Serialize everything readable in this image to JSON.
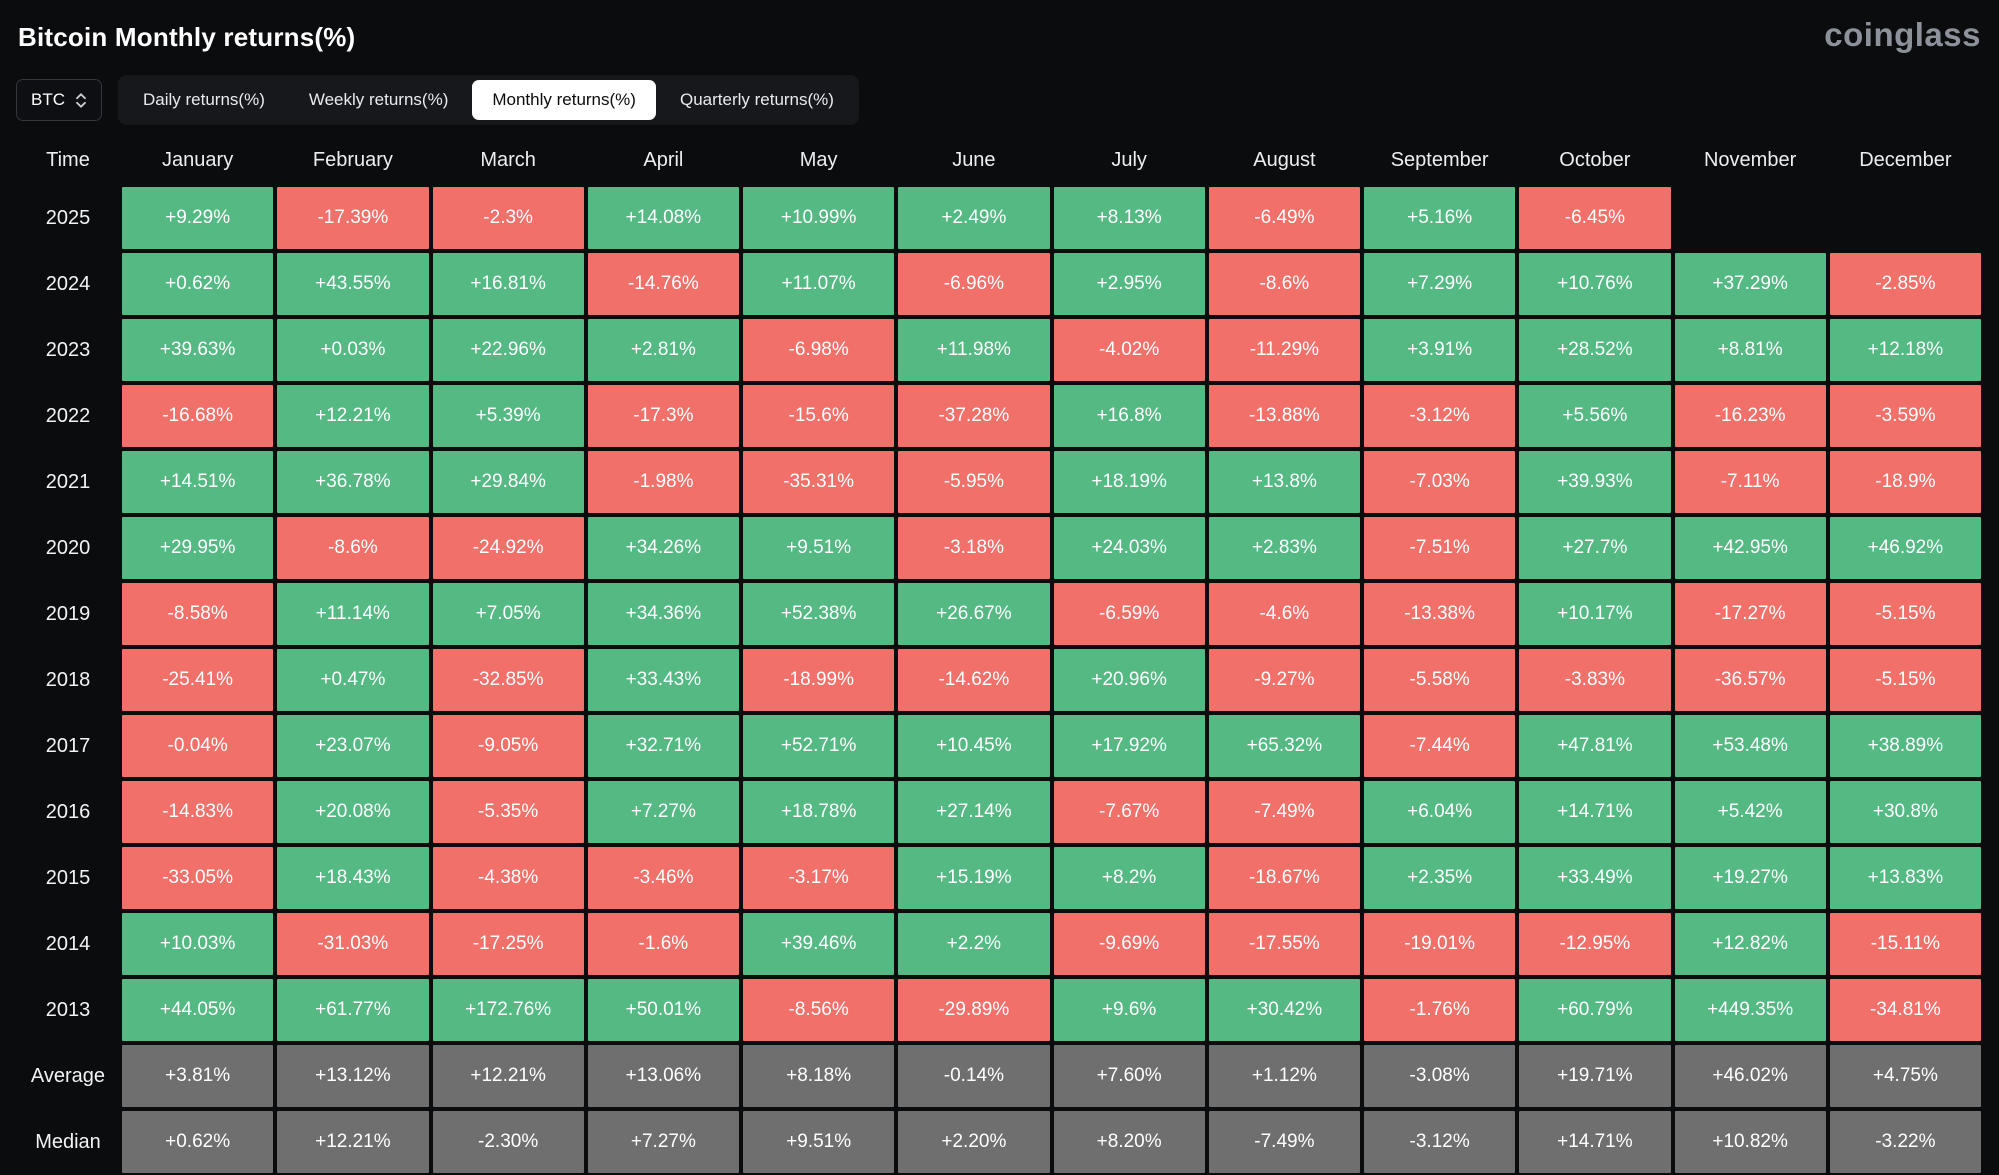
{
  "header": {
    "title": "Bitcoin Monthly returns(%)",
    "brand": "coinglass"
  },
  "controls": {
    "coin_selector": {
      "value": "BTC"
    },
    "tabs": [
      {
        "label": "Daily returns(%)",
        "active": false
      },
      {
        "label": "Weekly returns(%)",
        "active": false
      },
      {
        "label": "Monthly returns(%)",
        "active": true
      },
      {
        "label": "Quarterly returns(%)",
        "active": false
      }
    ]
  },
  "chart_data": {
    "type": "heatmap",
    "title": "Bitcoin Monthly returns(%)",
    "legend_note": "green = positive monthly return, red = negative monthly return, gray = summary rows",
    "colors": {
      "positive": "#54b983",
      "negative": "#f2706a",
      "summary": "#6f6f6f"
    },
    "columns": [
      "Time",
      "January",
      "February",
      "March",
      "April",
      "May",
      "June",
      "July",
      "August",
      "September",
      "October",
      "November",
      "December"
    ],
    "rows": [
      {
        "label": "2025",
        "kind": "year",
        "values": [
          "+9.29%",
          "-17.39%",
          "-2.3%",
          "+14.08%",
          "+10.99%",
          "+2.49%",
          "+8.13%",
          "-6.49%",
          "+5.16%",
          "-6.45%",
          "",
          ""
        ]
      },
      {
        "label": "2024",
        "kind": "year",
        "values": [
          "+0.62%",
          "+43.55%",
          "+16.81%",
          "-14.76%",
          "+11.07%",
          "-6.96%",
          "+2.95%",
          "-8.6%",
          "+7.29%",
          "+10.76%",
          "+37.29%",
          "-2.85%"
        ]
      },
      {
        "label": "2023",
        "kind": "year",
        "values": [
          "+39.63%",
          "+0.03%",
          "+22.96%",
          "+2.81%",
          "-6.98%",
          "+11.98%",
          "-4.02%",
          "-11.29%",
          "+3.91%",
          "+28.52%",
          "+8.81%",
          "+12.18%"
        ]
      },
      {
        "label": "2022",
        "kind": "year",
        "values": [
          "-16.68%",
          "+12.21%",
          "+5.39%",
          "-17.3%",
          "-15.6%",
          "-37.28%",
          "+16.8%",
          "-13.88%",
          "-3.12%",
          "+5.56%",
          "-16.23%",
          "-3.59%"
        ]
      },
      {
        "label": "2021",
        "kind": "year",
        "values": [
          "+14.51%",
          "+36.78%",
          "+29.84%",
          "-1.98%",
          "-35.31%",
          "-5.95%",
          "+18.19%",
          "+13.8%",
          "-7.03%",
          "+39.93%",
          "-7.11%",
          "-18.9%"
        ]
      },
      {
        "label": "2020",
        "kind": "year",
        "values": [
          "+29.95%",
          "-8.6%",
          "-24.92%",
          "+34.26%",
          "+9.51%",
          "-3.18%",
          "+24.03%",
          "+2.83%",
          "-7.51%",
          "+27.7%",
          "+42.95%",
          "+46.92%"
        ]
      },
      {
        "label": "2019",
        "kind": "year",
        "values": [
          "-8.58%",
          "+11.14%",
          "+7.05%",
          "+34.36%",
          "+52.38%",
          "+26.67%",
          "-6.59%",
          "-4.6%",
          "-13.38%",
          "+10.17%",
          "-17.27%",
          "-5.15%"
        ]
      },
      {
        "label": "2018",
        "kind": "year",
        "values": [
          "-25.41%",
          "+0.47%",
          "-32.85%",
          "+33.43%",
          "-18.99%",
          "-14.62%",
          "+20.96%",
          "-9.27%",
          "-5.58%",
          "-3.83%",
          "-36.57%",
          "-5.15%"
        ]
      },
      {
        "label": "2017",
        "kind": "year",
        "values": [
          "-0.04%",
          "+23.07%",
          "-9.05%",
          "+32.71%",
          "+52.71%",
          "+10.45%",
          "+17.92%",
          "+65.32%",
          "-7.44%",
          "+47.81%",
          "+53.48%",
          "+38.89%"
        ]
      },
      {
        "label": "2016",
        "kind": "year",
        "values": [
          "-14.83%",
          "+20.08%",
          "-5.35%",
          "+7.27%",
          "+18.78%",
          "+27.14%",
          "-7.67%",
          "-7.49%",
          "+6.04%",
          "+14.71%",
          "+5.42%",
          "+30.8%"
        ]
      },
      {
        "label": "2015",
        "kind": "year",
        "values": [
          "-33.05%",
          "+18.43%",
          "-4.38%",
          "-3.46%",
          "-3.17%",
          "+15.19%",
          "+8.2%",
          "-18.67%",
          "+2.35%",
          "+33.49%",
          "+19.27%",
          "+13.83%"
        ]
      },
      {
        "label": "2014",
        "kind": "year",
        "values": [
          "+10.03%",
          "-31.03%",
          "-17.25%",
          "-1.6%",
          "+39.46%",
          "+2.2%",
          "-9.69%",
          "-17.55%",
          "-19.01%",
          "-12.95%",
          "+12.82%",
          "-15.11%"
        ]
      },
      {
        "label": "2013",
        "kind": "year",
        "values": [
          "+44.05%",
          "+61.77%",
          "+172.76%",
          "+50.01%",
          "-8.56%",
          "-29.89%",
          "+9.6%",
          "+30.42%",
          "-1.76%",
          "+60.79%",
          "+449.35%",
          "-34.81%"
        ]
      },
      {
        "label": "Average",
        "kind": "summary",
        "values": [
          "+3.81%",
          "+13.12%",
          "+12.21%",
          "+13.06%",
          "+8.18%",
          "-0.14%",
          "+7.60%",
          "+1.12%",
          "-3.08%",
          "+19.71%",
          "+46.02%",
          "+4.75%"
        ]
      },
      {
        "label": "Median",
        "kind": "summary",
        "values": [
          "+0.62%",
          "+12.21%",
          "-2.30%",
          "+7.27%",
          "+9.51%",
          "+2.20%",
          "+8.20%",
          "-7.49%",
          "-3.12%",
          "+14.71%",
          "+10.82%",
          "-3.22%"
        ]
      }
    ]
  }
}
